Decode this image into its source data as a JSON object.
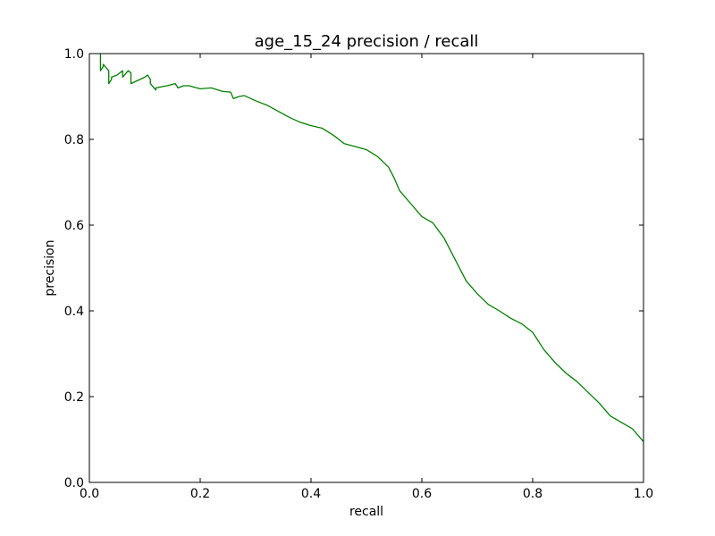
{
  "chart_data": {
    "type": "line",
    "title": "age_15_24 precision / recall",
    "xlabel": "recall",
    "ylabel": "precision",
    "xlim": [
      0.0,
      1.0
    ],
    "ylim": [
      0.0,
      1.0
    ],
    "grid": false,
    "xticks": [
      "0.0",
      "0.2",
      "0.4",
      "0.6",
      "0.8",
      "1.0"
    ],
    "yticks": [
      "0.0",
      "0.2",
      "0.4",
      "0.6",
      "0.8",
      "1.0"
    ],
    "series": [
      {
        "color": "#008000",
        "x": [
          0.02,
          0.02,
          0.025,
          0.025,
          0.035,
          0.035,
          0.04,
          0.04,
          0.05,
          0.06,
          0.06,
          0.07,
          0.075,
          0.075,
          0.1,
          0.105,
          0.11,
          0.11,
          0.12,
          0.12,
          0.14,
          0.155,
          0.16,
          0.17,
          0.18,
          0.2,
          0.22,
          0.24,
          0.255,
          0.26,
          0.27,
          0.28,
          0.3,
          0.32,
          0.34,
          0.36,
          0.38,
          0.4,
          0.42,
          0.44,
          0.46,
          0.48,
          0.5,
          0.52,
          0.54,
          0.55,
          0.56,
          0.58,
          0.6,
          0.62,
          0.64,
          0.66,
          0.68,
          0.7,
          0.72,
          0.74,
          0.76,
          0.78,
          0.8,
          0.82,
          0.84,
          0.86,
          0.88,
          0.9,
          0.92,
          0.94,
          0.96,
          0.98,
          1.0
        ],
        "y": [
          1.0,
          0.96,
          0.97,
          0.975,
          0.96,
          0.93,
          0.94,
          0.945,
          0.95,
          0.96,
          0.945,
          0.96,
          0.955,
          0.93,
          0.945,
          0.95,
          0.94,
          0.93,
          0.915,
          0.92,
          0.925,
          0.93,
          0.92,
          0.925,
          0.925,
          0.918,
          0.92,
          0.912,
          0.91,
          0.895,
          0.9,
          0.902,
          0.89,
          0.88,
          0.866,
          0.852,
          0.84,
          0.832,
          0.826,
          0.81,
          0.79,
          0.783,
          0.776,
          0.76,
          0.735,
          0.71,
          0.68,
          0.65,
          0.62,
          0.605,
          0.57,
          0.52,
          0.47,
          0.44,
          0.415,
          0.4,
          0.383,
          0.37,
          0.35,
          0.31,
          0.28,
          0.255,
          0.235,
          0.21,
          0.185,
          0.155,
          0.14,
          0.125,
          0.095
        ]
      }
    ]
  }
}
